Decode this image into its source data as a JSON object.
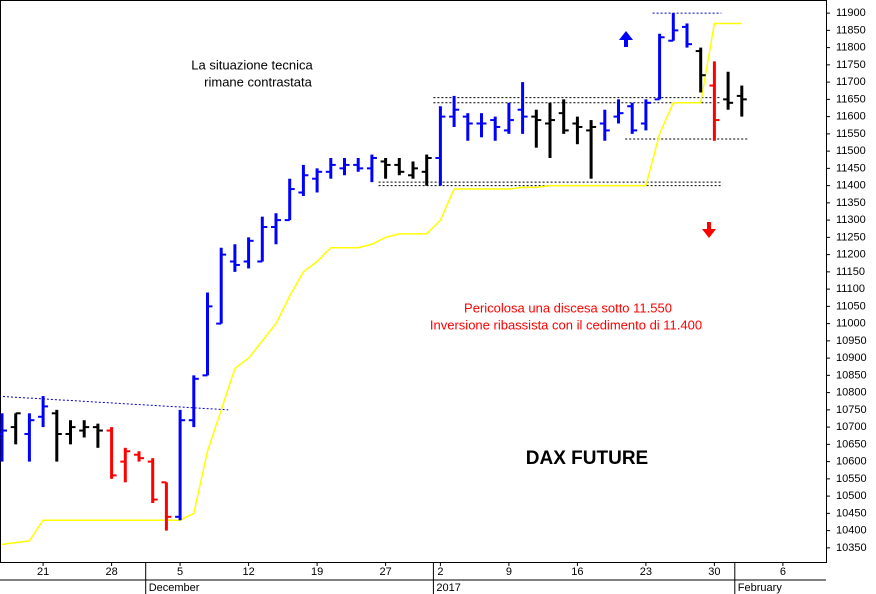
{
  "chart_data": {
    "type": "ohlc",
    "title": "DAX FUTURE",
    "annotations": [
      "La situazione tecnica",
      "rimane contrastata",
      "Pericolosa una discesa sotto 11.550",
      "Inversione ribassista con il cedimento di 11.400"
    ],
    "categories": [
      null,
      null,
      null,
      "21",
      null,
      null,
      null,
      null,
      "28",
      null,
      null,
      null,
      null,
      "5",
      null,
      null,
      null,
      null,
      "12",
      null,
      null,
      null,
      null,
      "19",
      null,
      null,
      null,
      null,
      "27",
      null,
      null,
      null,
      "2",
      null,
      null,
      null,
      null,
      "9",
      null,
      null,
      null,
      null,
      "16",
      null,
      null,
      null,
      null,
      "23",
      null,
      null,
      null,
      null,
      "30",
      null,
      null,
      null,
      null,
      "6"
    ],
    "months": [
      {
        "name": "December",
        "start": 11
      },
      {
        "name": "2017",
        "start": 32
      },
      {
        "name": "February",
        "start": 54
      }
    ],
    "open": [
      10680,
      10700,
      10680,
      10730,
      10740,
      10680,
      10690,
      10700,
      10690,
      10600,
      10620,
      10600,
      10540,
      10440,
      10720,
      10850,
      11000,
      11180,
      11180,
      11180,
      11280,
      11300,
      11380,
      11420,
      11440,
      11450,
      11460,
      11450,
      11470,
      11460,
      11430,
      11440,
      11480,
      11600,
      11600,
      11580,
      11590,
      11560,
      11620,
      11600,
      11580,
      11610,
      11580,
      11560,
      11580,
      11600,
      11630,
      11580,
      11650,
      11820,
      11860,
      11790,
      11690,
      11650,
      11660,
      null,
      null,
      null
    ],
    "high": [
      10740,
      10740,
      10740,
      10790,
      10750,
      10720,
      10720,
      10710,
      10700,
      10640,
      10630,
      10610,
      10540,
      10750,
      10850,
      11090,
      11220,
      11230,
      11250,
      11310,
      11320,
      11420,
      11460,
      11450,
      11480,
      11480,
      11480,
      11490,
      11480,
      11480,
      11470,
      11490,
      11630,
      11660,
      11610,
      11610,
      11600,
      11640,
      11700,
      11620,
      11640,
      11650,
      11600,
      11590,
      11620,
      11650,
      11640,
      11650,
      11840,
      11900,
      11870,
      11800,
      11760,
      11730,
      11690,
      null,
      null,
      null
    ],
    "low": [
      10600,
      10650,
      10600,
      10700,
      10600,
      10650,
      10670,
      10640,
      10550,
      10540,
      10600,
      10480,
      10400,
      10430,
      10700,
      10850,
      11000,
      11150,
      11160,
      11180,
      11230,
      11300,
      11370,
      11380,
      11420,
      11430,
      11440,
      11410,
      11420,
      11430,
      11420,
      11400,
      11400,
      11570,
      11530,
      11540,
      11530,
      11550,
      11550,
      11510,
      11480,
      11550,
      11520,
      11420,
      11530,
      11580,
      11550,
      11560,
      11650,
      11820,
      11800,
      11670,
      11530,
      11620,
      11600,
      null,
      null,
      null
    ],
    "close": [
      10690,
      10740,
      10720,
      10760,
      10680,
      10700,
      10700,
      10690,
      10560,
      10630,
      10610,
      10490,
      10440,
      10720,
      10840,
      11050,
      11200,
      11170,
      11240,
      11280,
      11300,
      11390,
      11430,
      11440,
      11460,
      11460,
      11450,
      11480,
      11460,
      11440,
      11450,
      11480,
      11600,
      11620,
      11580,
      11580,
      11570,
      11590,
      11600,
      11590,
      11590,
      11560,
      11570,
      11570,
      11560,
      11610,
      11560,
      11640,
      11830,
      11850,
      11810,
      11720,
      11590,
      11640,
      11650,
      null,
      null,
      null
    ],
    "bar_colors": [
      "#0000ff",
      "#000000",
      "#0000ff",
      "#0000ff",
      "#000000",
      "#000000",
      "#000000",
      "#000000",
      "#ff0000",
      "#ff0000",
      "#ff0000",
      "#ff0000",
      "#ff0000",
      "#0000ff",
      "#0000ff",
      "#0000ff",
      "#0000ff",
      "#0000ff",
      "#0000ff",
      "#0000ff",
      "#0000ff",
      "#0000ff",
      "#0000ff",
      "#0000ff",
      "#0000ff",
      "#0000ff",
      "#0000ff",
      "#0000ff",
      "#000000",
      "#000000",
      "#000000",
      "#000000",
      "#0000ff",
      "#0000ff",
      "#0000ff",
      "#0000ff",
      "#0000ff",
      "#0000ff",
      "#0000ff",
      "#000000",
      "#000000",
      "#000000",
      "#000000",
      "#000000",
      "#0000ff",
      "#0000ff",
      "#0000ff",
      "#0000ff",
      "#0000ff",
      "#0000ff",
      "#0000ff",
      "#000000",
      "#ff0000",
      "#000000",
      "#000000",
      null,
      null,
      null
    ],
    "stop_line": {
      "color": "#ffff00",
      "values": [
        10360,
        10365,
        10370,
        10430,
        10430,
        10430,
        10430,
        10430,
        10430,
        10430,
        10430,
        10430,
        10430,
        10430,
        10450,
        10630,
        10750,
        10870,
        10900,
        10950,
        11000,
        11080,
        11150,
        11180,
        11220,
        11220,
        11220,
        11230,
        11250,
        11260,
        11260,
        11260,
        11300,
        11390,
        11390,
        11390,
        11390,
        11390,
        11395,
        11395,
        11400,
        11400,
        11400,
        11400,
        11400,
        11400,
        11400,
        11400,
        11550,
        11640,
        11640,
        11640,
        11870,
        11870,
        11870,
        null,
        null,
        null
      ]
    },
    "levels": [
      {
        "y": [
          10790,
          10750
        ],
        "from": 0,
        "to": 16,
        "color": "#0000cc"
      },
      {
        "y": [
          11900,
          11900
        ],
        "from": 48,
        "to": 52,
        "color": "#0000cc"
      },
      {
        "y": [
          11655,
          11655
        ],
        "from": 32,
        "to": 52,
        "color": "#000000"
      },
      {
        "y": [
          11640,
          11640
        ],
        "from": 32,
        "to": 52,
        "color": "#000000"
      },
      {
        "y": [
          11410,
          11410
        ],
        "from": 28,
        "to": 52,
        "color": "#000000"
      },
      {
        "y": [
          11400,
          11400
        ],
        "from": 28,
        "to": 52,
        "color": "#000000"
      },
      {
        "y": [
          11535,
          11535
        ],
        "from": 46,
        "to": 54,
        "color": "#000000"
      }
    ],
    "ylim": [
      10309,
      11938
    ],
    "yticks": [
      10350,
      10400,
      10450,
      10500,
      10550,
      10600,
      10650,
      10700,
      10750,
      10800,
      10850,
      10900,
      10950,
      11000,
      11050,
      11100,
      11150,
      11200,
      11250,
      11300,
      11350,
      11400,
      11450,
      11500,
      11550,
      11600,
      11650,
      11700,
      11750,
      11800,
      11850,
      11900
    ],
    "grid": false
  }
}
